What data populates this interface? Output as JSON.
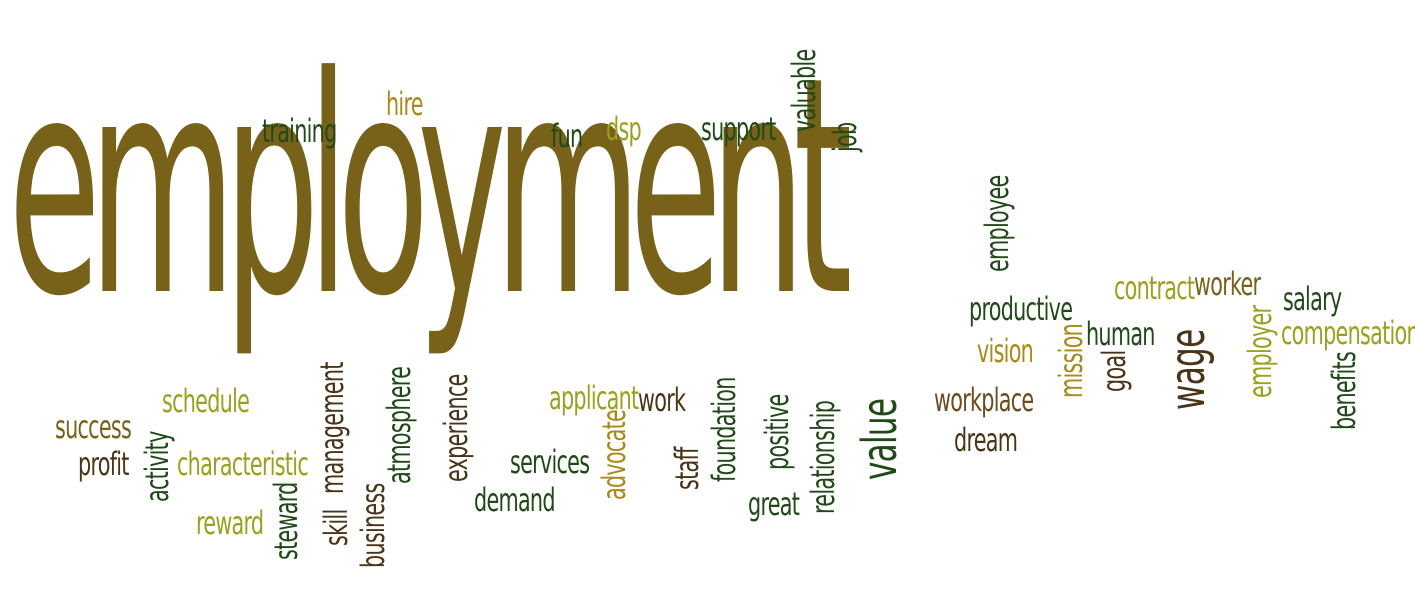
{
  "palette": {
    "olive": "#786119",
    "dark_green": "#1f4a17",
    "dark_brown": "#4a3418",
    "lime": "#9aa11e",
    "gold": "#a8891c",
    "medium_brown": "#6b4c1c"
  },
  "words": [
    {
      "text": "employment",
      "color": "#786119",
      "orientation": "horizontal"
    },
    {
      "text": "training",
      "color": "#1f4a17",
      "orientation": "horizontal"
    },
    {
      "text": "hire",
      "color": "#a8891c",
      "orientation": "horizontal"
    },
    {
      "text": "fun",
      "color": "#1f4a17",
      "orientation": "horizontal"
    },
    {
      "text": "dsp",
      "color": "#9aa11e",
      "orientation": "horizontal"
    },
    {
      "text": "support",
      "color": "#1f4a17",
      "orientation": "horizontal"
    },
    {
      "text": "valuable",
      "color": "#1f4a17",
      "orientation": "vertical"
    },
    {
      "text": "job",
      "color": "#1f4a17",
      "orientation": "vertical"
    },
    {
      "text": "employee",
      "color": "#1f4a17",
      "orientation": "vertical"
    },
    {
      "text": "contract",
      "color": "#9aa11e",
      "orientation": "horizontal"
    },
    {
      "text": "worker",
      "color": "#786119",
      "orientation": "horizontal"
    },
    {
      "text": "salary",
      "color": "#1f4a17",
      "orientation": "horizontal"
    },
    {
      "text": "productive",
      "color": "#1f4a17",
      "orientation": "horizontal"
    },
    {
      "text": "human",
      "color": "#1f4a17",
      "orientation": "horizontal"
    },
    {
      "text": "compensation",
      "color": "#9aa11e",
      "orientation": "horizontal"
    },
    {
      "text": "vision",
      "color": "#a8891c",
      "orientation": "horizontal"
    },
    {
      "text": "mission",
      "color": "#a8891c",
      "orientation": "vertical"
    },
    {
      "text": "goal",
      "color": "#4a3418",
      "orientation": "vertical"
    },
    {
      "text": "wage",
      "color": "#4a3418",
      "orientation": "vertical"
    },
    {
      "text": "employer",
      "color": "#9aa11e",
      "orientation": "vertical"
    },
    {
      "text": "benefits",
      "color": "#1f4a17",
      "orientation": "vertical"
    },
    {
      "text": "schedule",
      "color": "#9aa11e",
      "orientation": "horizontal"
    },
    {
      "text": "success",
      "color": "#786119",
      "orientation": "horizontal"
    },
    {
      "text": "profit",
      "color": "#4a3418",
      "orientation": "horizontal"
    },
    {
      "text": "activity",
      "color": "#1f4a17",
      "orientation": "vertical"
    },
    {
      "text": "characteristic",
      "color": "#9aa11e",
      "orientation": "horizontal"
    },
    {
      "text": "reward",
      "color": "#9aa11e",
      "orientation": "horizontal"
    },
    {
      "text": "steward",
      "color": "#1f4a17",
      "orientation": "vertical"
    },
    {
      "text": "skill",
      "color": "#4a3418",
      "orientation": "vertical"
    },
    {
      "text": "management",
      "color": "#4a3418",
      "orientation": "vertical"
    },
    {
      "text": "business",
      "color": "#4a3418",
      "orientation": "vertical"
    },
    {
      "text": "atmosphere",
      "color": "#1f4a17",
      "orientation": "vertical"
    },
    {
      "text": "experience",
      "color": "#4a3418",
      "orientation": "vertical"
    },
    {
      "text": "services",
      "color": "#1f4a17",
      "orientation": "horizontal"
    },
    {
      "text": "demand",
      "color": "#1f4a17",
      "orientation": "horizontal"
    },
    {
      "text": "applicant",
      "color": "#9aa11e",
      "orientation": "horizontal"
    },
    {
      "text": "work",
      "color": "#4a3418",
      "orientation": "horizontal"
    },
    {
      "text": "advocate",
      "color": "#a8891c",
      "orientation": "vertical"
    },
    {
      "text": "staff",
      "color": "#4a3418",
      "orientation": "vertical"
    },
    {
      "text": "foundation",
      "color": "#1f4a17",
      "orientation": "vertical"
    },
    {
      "text": "positive",
      "color": "#1f4a17",
      "orientation": "vertical"
    },
    {
      "text": "relationship",
      "color": "#1f4a17",
      "orientation": "vertical"
    },
    {
      "text": "great",
      "color": "#1f4a17",
      "orientation": "horizontal"
    },
    {
      "text": "value",
      "color": "#1f4a17",
      "orientation": "vertical"
    },
    {
      "text": "workplace",
      "color": "#6b4c1c",
      "orientation": "horizontal"
    },
    {
      "text": "dream",
      "color": "#4a3418",
      "orientation": "horizontal"
    }
  ]
}
